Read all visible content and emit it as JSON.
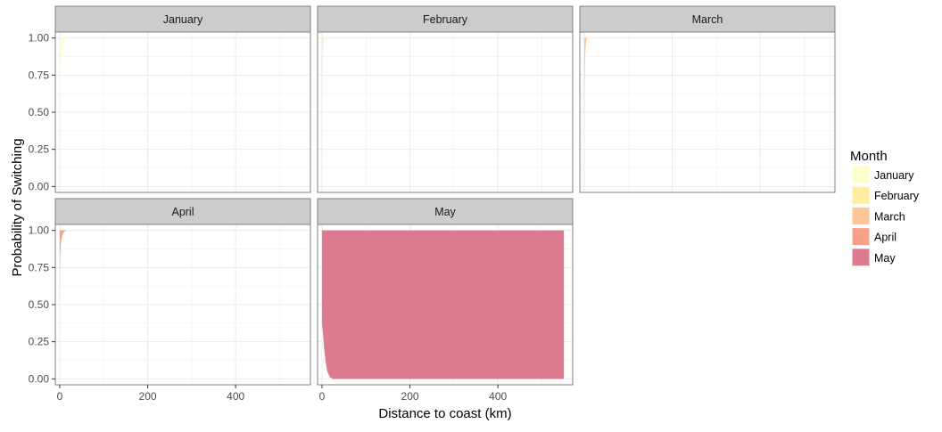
{
  "chart_data": {
    "type": "area",
    "facet_by": "Month",
    "xlabel": "Distance to coast (km)",
    "ylabel": "Probability of Switching",
    "xlim": [
      -10,
      570
    ],
    "ylim": [
      -0.04,
      1.04
    ],
    "x_ticks": [
      0,
      200,
      400
    ],
    "x_tick_labels": [
      "0",
      "200",
      "400"
    ],
    "y_ticks": [
      0,
      0.25,
      0.5,
      0.75,
      1.0
    ],
    "y_tick_labels": [
      "0.00",
      "0.25",
      "0.50",
      "0.75",
      "1.00"
    ],
    "grid": true,
    "legend": {
      "title": "Month",
      "position": "right",
      "entries": [
        "January",
        "February",
        "March",
        "April",
        "May"
      ]
    },
    "panels": [
      {
        "label": "January",
        "color": "#FFFFCC",
        "edge": [
          [
            0,
            0.52
          ],
          [
            2,
            0.8
          ],
          [
            5,
            0.92
          ],
          [
            10,
            0.98
          ],
          [
            15,
            1.0
          ]
        ],
        "right_x": 20
      },
      {
        "label": "February",
        "color": "#FFEDA0",
        "edge": [
          [
            0,
            0.5
          ],
          [
            1,
            0.75
          ],
          [
            2,
            0.9
          ],
          [
            3,
            0.97
          ],
          [
            5,
            1.0
          ]
        ],
        "right_x": 6
      },
      {
        "label": "March",
        "color": "#FEC49A",
        "edge": [
          [
            0,
            0.35
          ],
          [
            1,
            0.7
          ],
          [
            2,
            0.88
          ],
          [
            4,
            0.97
          ],
          [
            6,
            1.0
          ]
        ],
        "right_x": 10
      },
      {
        "label": "April",
        "color": "#F9A08B",
        "edge": [
          [
            0,
            0.52
          ],
          [
            1,
            0.82
          ],
          [
            3,
            0.92
          ],
          [
            6,
            0.97
          ],
          [
            10,
            0.99
          ],
          [
            15,
            1.0
          ]
        ],
        "right_x": 22
      },
      {
        "label": "May",
        "color": "#DE7A8D",
        "edge": [
          [
            0,
            0.38
          ],
          [
            3,
            0.28
          ],
          [
            5,
            0.2
          ],
          [
            8,
            0.12
          ],
          [
            12,
            0.05
          ],
          [
            18,
            0.01
          ],
          [
            25,
            0.0
          ]
        ],
        "right_x": 550
      }
    ]
  }
}
